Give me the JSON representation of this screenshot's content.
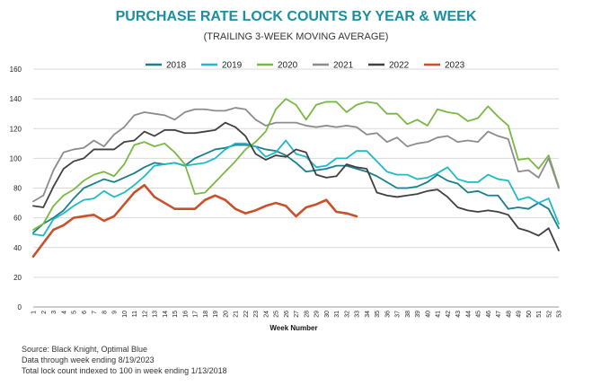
{
  "chart_data": {
    "type": "line",
    "title": "PURCHASE RATE LOCK COUNTS BY YEAR & WEEK",
    "subtitle": "(TRAILING 3-WEEK MOVING AVERAGE)",
    "xlabel": "Week Number",
    "ylabel": "",
    "ylim": [
      0,
      160
    ],
    "yticks": [
      0,
      20,
      40,
      60,
      80,
      100,
      120,
      140,
      160
    ],
    "categories": [
      "1",
      "2",
      "3",
      "4",
      "5",
      "6",
      "7",
      "8",
      "9",
      "10",
      "11",
      "12",
      "13",
      "14",
      "15",
      "16",
      "17",
      "18",
      "19",
      "20",
      "21",
      "22",
      "23",
      "24",
      "25",
      "26",
      "27",
      "28",
      "29",
      "30",
      "31",
      "32",
      "33",
      "34",
      "35",
      "36",
      "37",
      "38",
      "39",
      "40",
      "41",
      "42",
      "43",
      "44",
      "45",
      "46",
      "47",
      "48",
      "49",
      "50",
      "51",
      "52",
      "53"
    ],
    "grid": true,
    "legend_position": "top",
    "series": [
      {
        "name": "2018",
        "color": "#1a7f8c",
        "values": [
          50,
          56,
          60,
          65,
          73,
          80,
          83,
          86,
          84,
          87,
          90,
          94,
          97,
          96,
          97,
          95,
          100,
          103,
          106,
          107,
          109,
          109,
          108,
          106,
          105,
          102,
          97,
          91,
          92,
          93,
          95,
          95,
          93,
          91,
          88,
          84,
          80,
          80,
          81,
          84,
          89,
          85,
          83,
          77,
          78,
          75,
          75,
          66,
          67,
          66,
          70,
          66,
          53
        ]
      },
      {
        "name": "2019",
        "color": "#1fb9c9",
        "values": [
          49,
          48,
          59,
          63,
          68,
          72,
          73,
          78,
          74,
          77,
          82,
          88,
          95,
          96,
          97,
          95,
          96,
          97,
          100,
          106,
          110,
          110,
          108,
          101,
          104,
          112,
          103,
          101,
          94,
          95,
          100,
          100,
          105,
          105,
          98,
          91,
          89,
          89,
          86,
          87,
          90,
          94,
          86,
          84,
          84,
          89,
          86,
          85,
          72,
          74,
          70,
          73,
          56
        ]
      },
      {
        "name": "2020",
        "color": "#7ab844",
        "values": [
          52,
          56,
          68,
          75,
          79,
          85,
          89,
          91,
          88,
          96,
          109,
          111,
          108,
          110,
          104,
          96,
          76,
          77,
          84,
          91,
          98,
          106,
          111,
          118,
          133,
          140,
          136,
          126,
          136,
          138,
          138,
          131,
          136,
          138,
          137,
          130,
          130,
          123,
          126,
          122,
          133,
          131,
          130,
          125,
          127,
          135,
          128,
          122,
          99,
          100,
          93,
          102,
          81
        ]
      },
      {
        "name": "2021",
        "color": "#8c8c8c",
        "values": [
          71,
          75,
          92,
          104,
          106,
          107,
          112,
          108,
          116,
          121,
          129,
          131,
          130,
          129,
          126,
          131,
          133,
          133,
          132,
          132,
          134,
          133,
          126,
          122,
          124,
          124,
          124,
          122,
          121,
          122,
          121,
          122,
          121,
          116,
          117,
          111,
          114,
          108,
          110,
          111,
          114,
          115,
          111,
          112,
          111,
          118,
          115,
          113,
          91,
          92,
          87,
          100,
          80
        ]
      },
      {
        "name": "2022",
        "color": "#404040",
        "values": [
          68,
          67,
          81,
          93,
          98,
          100,
          106,
          106,
          106,
          111,
          112,
          118,
          115,
          119,
          119,
          117,
          117,
          118,
          119,
          124,
          121,
          115,
          103,
          99,
          102,
          101,
          106,
          104,
          89,
          87,
          88,
          96,
          94,
          93,
          77,
          75,
          74,
          75,
          76,
          78,
          79,
          74,
          67,
          65,
          64,
          65,
          64,
          62,
          53,
          51,
          48,
          53,
          38
        ]
      },
      {
        "name": "2023",
        "color": "#c9502a",
        "values": [
          34,
          43,
          52,
          55,
          60,
          61,
          62,
          58,
          61,
          69,
          77,
          82,
          74,
          70,
          66,
          66,
          66,
          72,
          75,
          72,
          66,
          63,
          65,
          68,
          70,
          68,
          61,
          67,
          69,
          72,
          64,
          63,
          61,
          null,
          null,
          null,
          null,
          null,
          null,
          null,
          null,
          null,
          null,
          null,
          null,
          null,
          null,
          null,
          null,
          null,
          null,
          null,
          null
        ]
      }
    ],
    "footnotes": [
      "Source: Black Knight, Optimal Blue",
      "Data through week ending 8/19/2023",
      "Total lock count indexed to 100 in week ending 1/13/2018"
    ]
  }
}
